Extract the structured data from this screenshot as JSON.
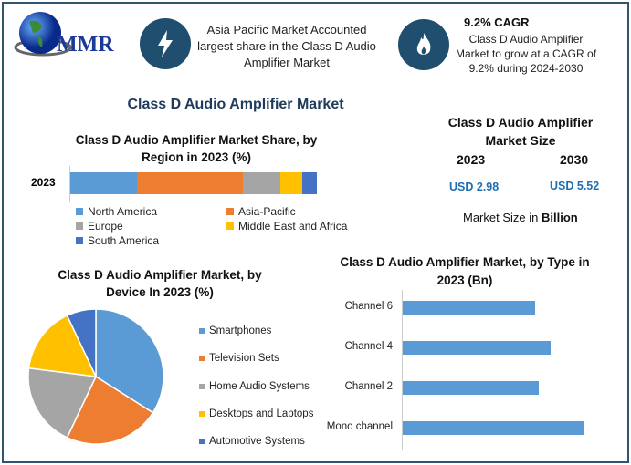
{
  "logo": {
    "text": "MMR"
  },
  "highlight1": {
    "icon": "lightning-icon",
    "text": "Asia Pacific Market Accounted largest share in the Class D Audio Amplifier Market"
  },
  "highlight2": {
    "icon": "flame-icon",
    "title": "9.2% CAGR",
    "text": "Class D Audio Amplifier Market to grow at a CAGR of 9.2% during 2024-2030"
  },
  "main_title": "Class D Audio Amplifier Market",
  "market_size": {
    "title": "Class D Audio Amplifier Market Size",
    "year1": "2023",
    "year2": "2030",
    "value1": "USD 2.98",
    "value2": "USD 5.52",
    "note_prefix": "Market Size in ",
    "note_bold": "Billion"
  },
  "colors": {
    "blue": "#5b9bd5",
    "orange": "#ed7d31",
    "gray": "#a5a5a5",
    "yellow": "#ffc000",
    "darkblue": "#4472c4",
    "accent": "#1f6fb2"
  },
  "chart_data": [
    {
      "type": "bar",
      "orientation": "horizontal-stacked",
      "title": "Class D Audio Amplifier Market Share, by Region in 2023 (%)",
      "categories": [
        "2023"
      ],
      "series": [
        {
          "name": "North America",
          "values": [
            27
          ]
        },
        {
          "name": "Asia-Pacific",
          "values": [
            43
          ]
        },
        {
          "name": "Europe",
          "values": [
            15
          ]
        },
        {
          "name": "Middle East and Africa",
          "values": [
            9
          ]
        },
        {
          "name": "South America",
          "values": [
            6
          ]
        }
      ],
      "legend": "bottom"
    },
    {
      "type": "pie",
      "title": "Class D Audio Amplifier Market, by Device In 2023 (%)",
      "labels": [
        "Smartphones",
        "Television Sets",
        "Home Audio Systems",
        "Desktops and Laptops",
        "Automotive Systems"
      ],
      "values": [
        34,
        23,
        20,
        16,
        7
      ],
      "legend": "right"
    },
    {
      "type": "bar",
      "orientation": "horizontal",
      "title": "Class D Audio Amplifier Market, by Type in 2023 (Bn)",
      "categories": [
        "Channel 6",
        "Channel 4",
        "Channel 2",
        "Mono channel"
      ],
      "values": [
        0.66,
        0.74,
        0.68,
        0.91
      ]
    }
  ]
}
